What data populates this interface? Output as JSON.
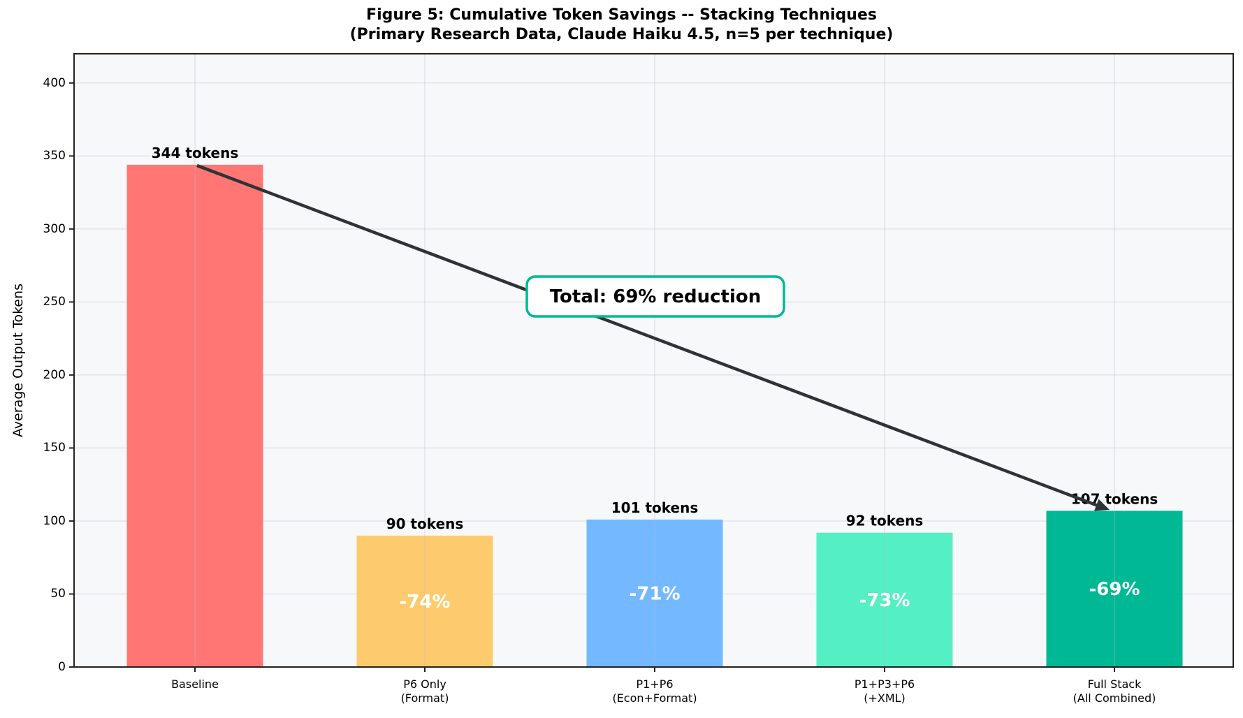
{
  "chart_data": {
    "type": "bar",
    "title": "Figure 5: Cumulative Token Savings -- Stacking Techniques",
    "subtitle": "(Primary Research Data, Claude Haiku 4.5, n=5 per technique)",
    "xlabel": "",
    "ylabel": "Average Output Tokens",
    "ylim": [
      0,
      420
    ],
    "yticks": [
      0,
      50,
      100,
      150,
      200,
      250,
      300,
      350,
      400
    ],
    "grid": true,
    "categories": [
      "Baseline",
      "P6 Only\n(Format)",
      "P1+P6\n(Econ+Format)",
      "P1+P3+P6\n(+XML)",
      "Full Stack\n(All Combined)"
    ],
    "category_lines": [
      [
        "Baseline"
      ],
      [
        "P6 Only",
        "(Format)"
      ],
      [
        "P1+P6",
        "(Econ+Format)"
      ],
      [
        "P1+P3+P6",
        "(+XML)"
      ],
      [
        "Full Stack",
        "(All Combined)"
      ]
    ],
    "values": [
      344,
      90,
      101,
      92,
      107
    ],
    "value_labels": [
      "344 tokens",
      "90 tokens",
      "101 tokens",
      "92 tokens",
      "107 tokens"
    ],
    "reduction_labels": [
      "",
      "-74%",
      "-71%",
      "-73%",
      "-69%"
    ],
    "colors": [
      "#ff7675",
      "#fdcb6e",
      "#74b9ff",
      "#55efc4",
      "#00b894"
    ],
    "annotations": [
      {
        "text": "Total: 69% reduction",
        "type": "arrow",
        "from": [
          "Baseline",
          344
        ],
        "to": [
          "Full Stack",
          107
        ],
        "box_edge_color": "#00b894"
      }
    ]
  }
}
